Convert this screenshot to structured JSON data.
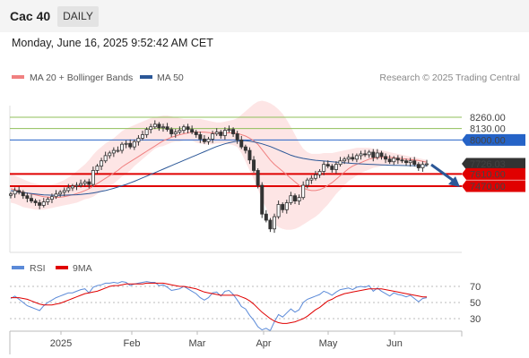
{
  "header": {
    "title": "Cac 40",
    "timeframe": "DAILY"
  },
  "datetime": "Monday, June 16, 2025 9:52:42 AM CET",
  "legend": {
    "ma20_label": "MA 20 + Bollinger Bands",
    "ma50_label": "MA 50",
    "copyright": "Research © 2025 Trading Central",
    "rsi_label": "RSI",
    "rsi_ma_label": "9MA"
  },
  "colors": {
    "ma20": "#f08080",
    "ma50": "#2b5797",
    "bollinger_fill": "#fde0e0",
    "support": "#e00000",
    "resistance_green": "#8fbf5a",
    "resistance_blue": "#2563c7",
    "price_tag": "#333333",
    "rsi": "#5b8ad8",
    "rsi_ma": "#e00000",
    "arrow": "#2b5797"
  },
  "chart_data": [
    {
      "type": "candlestick",
      "x_ticks": [
        "2025",
        "Feb",
        "Mar",
        "Apr",
        "May",
        "Jun"
      ],
      "y_range": [
        7000,
        8500
      ],
      "levels": [
        {
          "label": "8260.00",
          "value": 8260,
          "kind": "resistance",
          "color": "#8fbf5a"
        },
        {
          "label": "8130.00",
          "value": 8130,
          "kind": "resistance",
          "color": "#8fbf5a"
        },
        {
          "label": "8000.00",
          "value": 8000,
          "kind": "resistance",
          "color": "#2563c7"
        },
        {
          "label": "7726.03",
          "value": 7726.03,
          "kind": "last-price",
          "color": "#333333"
        },
        {
          "label": "7610.00",
          "value": 7610,
          "kind": "support",
          "color": "#e00000"
        },
        {
          "label": "7470.00",
          "value": 7470,
          "kind": "support",
          "color": "#e00000"
        }
      ],
      "close": [
        7380,
        7420,
        7400,
        7360,
        7330,
        7300,
        7280,
        7250,
        7290,
        7320,
        7350,
        7380,
        7400,
        7420,
        7450,
        7470,
        7480,
        7500,
        7520,
        7490,
        7650,
        7700,
        7760,
        7820,
        7850,
        7880,
        7880,
        7950,
        7960,
        7920,
        7980,
        8020,
        8060,
        8120,
        8150,
        8180,
        8140,
        8150,
        8120,
        8070,
        8090,
        8110,
        8150,
        8120,
        8090,
        8060,
        8010,
        7980,
        8010,
        8070,
        8090,
        8050,
        8110,
        8120,
        8070,
        8000,
        7920,
        7880,
        7770,
        7650,
        7480,
        7150,
        7080,
        6980,
        7120,
        7260,
        7200,
        7280,
        7360,
        7300,
        7340,
        7480,
        7540,
        7560,
        7600,
        7640,
        7720,
        7700,
        7660,
        7720,
        7760,
        7780,
        7800,
        7780,
        7820,
        7840,
        7830,
        7860,
        7800,
        7850,
        7810,
        7780,
        7750,
        7790,
        7770,
        7760,
        7740,
        7760,
        7720,
        7680,
        7720,
        7726
      ],
      "ma20": [
        7440,
        7430,
        7410,
        7400,
        7390,
        7380,
        7370,
        7360,
        7350,
        7345,
        7340,
        7340,
        7345,
        7350,
        7360,
        7370,
        7385,
        7400,
        7420,
        7440,
        7470,
        7500,
        7530,
        7560,
        7590,
        7620,
        7650,
        7690,
        7720,
        7750,
        7780,
        7810,
        7840,
        7870,
        7900,
        7930,
        7960,
        7990,
        8010,
        8030,
        8045,
        8060,
        8070,
        8080,
        8090,
        8090,
        8090,
        8090,
        8085,
        8080,
        8075,
        8075,
        8080,
        8080,
        8080,
        8075,
        8060,
        8045,
        8020,
        7990,
        7950,
        7890,
        7830,
        7770,
        7720,
        7680,
        7640,
        7600,
        7560,
        7520,
        7480,
        7450,
        7430,
        7420,
        7420,
        7430,
        7450,
        7480,
        7510,
        7550,
        7590,
        7630,
        7670,
        7700,
        7720,
        7740,
        7760,
        7780,
        7790,
        7795,
        7800,
        7800,
        7800,
        7795,
        7790,
        7785,
        7780,
        7775,
        7770,
        7765,
        7755,
        7745
      ],
      "bollinger_upper": [
        7600,
        7590,
        7570,
        7550,
        7530,
        7510,
        7500,
        7490,
        7480,
        7480,
        7490,
        7500,
        7520,
        7540,
        7570,
        7600,
        7640,
        7680,
        7720,
        7770,
        7830,
        7880,
        7920,
        7960,
        7990,
        8020,
        8060,
        8100,
        8130,
        8150,
        8170,
        8190,
        8210,
        8230,
        8250,
        8260,
        8270,
        8280,
        8280,
        8270,
        8260,
        8250,
        8240,
        8240,
        8240,
        8240,
        8240,
        8230,
        8220,
        8210,
        8200,
        8200,
        8210,
        8220,
        8230,
        8250,
        8290,
        8330,
        8370,
        8410,
        8440,
        8450,
        8440,
        8420,
        8390,
        8350,
        8300,
        8230,
        8150,
        8060,
        7970,
        7900,
        7860,
        7840,
        7840,
        7840,
        7850,
        7850,
        7850,
        7860,
        7870,
        7880,
        7890,
        7900,
        7910,
        7910,
        7910,
        7910,
        7900,
        7890,
        7880,
        7870,
        7860,
        7850,
        7840,
        7830,
        7820,
        7810,
        7800,
        7790,
        7780,
        7770
      ],
      "bollinger_lower": [
        7280,
        7270,
        7250,
        7230,
        7220,
        7210,
        7200,
        7200,
        7200,
        7210,
        7220,
        7230,
        7240,
        7250,
        7260,
        7270,
        7280,
        7300,
        7320,
        7330,
        7350,
        7380,
        7410,
        7440,
        7470,
        7500,
        7540,
        7580,
        7610,
        7650,
        7700,
        7740,
        7780,
        7820,
        7860,
        7900,
        7920,
        7930,
        7950,
        7970,
        7980,
        7980,
        7990,
        7990,
        7990,
        7970,
        7960,
        7950,
        7950,
        7950,
        7960,
        7960,
        7960,
        7950,
        7940,
        7920,
        7850,
        7750,
        7650,
        7550,
        7440,
        7320,
        7220,
        7110,
        7040,
        7000,
        6980,
        6970,
        6970,
        6980,
        7000,
        7030,
        7060,
        7090,
        7120,
        7160,
        7210,
        7260,
        7320,
        7380,
        7430,
        7480,
        7530,
        7560,
        7590,
        7620,
        7640,
        7660,
        7680,
        7690,
        7700,
        7710,
        7720,
        7720,
        7720,
        7720,
        7720,
        7720,
        7720,
        7720,
        7720,
        7720
      ],
      "ma50": [
        7420,
        7410,
        7400,
        7395,
        7390,
        7385,
        7380,
        7375,
        7370,
        7368,
        7366,
        7365,
        7365,
        7366,
        7368,
        7370,
        7372,
        7375,
        7380,
        7385,
        7392,
        7400,
        7410,
        7420,
        7432,
        7445,
        7460,
        7475,
        7490,
        7508,
        7525,
        7545,
        7565,
        7585,
        7605,
        7625,
        7645,
        7665,
        7685,
        7705,
        7725,
        7745,
        7765,
        7785,
        7805,
        7825,
        7845,
        7865,
        7885,
        7905,
        7925,
        7940,
        7955,
        7968,
        7978,
        7985,
        7990,
        7990,
        7985,
        7978,
        7968,
        7955,
        7940,
        7925,
        7905,
        7885,
        7865,
        7845,
        7825,
        7810,
        7798,
        7788,
        7780,
        7773,
        7767,
        7762,
        7758,
        7754,
        7750,
        7746,
        7742,
        7738,
        7734,
        7731,
        7728,
        7725,
        7722,
        7720,
        7718,
        7716,
        7714,
        7712,
        7710,
        7709,
        7708,
        7707,
        7706,
        7705,
        7705,
        7704,
        7704,
        7704
      ]
    },
    {
      "type": "line",
      "name": "RSI",
      "y_ticks": [
        70,
        50,
        30
      ],
      "y_range": [
        20,
        80
      ],
      "rsi": [
        55,
        58,
        54,
        50,
        46,
        44,
        42,
        40,
        46,
        50,
        53,
        56,
        58,
        60,
        62,
        62,
        64,
        66,
        67,
        62,
        69,
        71,
        72,
        74,
        74,
        75,
        74,
        76,
        75,
        71,
        73,
        74,
        75,
        76,
        75,
        75,
        71,
        72,
        69,
        65,
        66,
        67,
        70,
        67,
        64,
        61,
        56,
        53,
        56,
        62,
        63,
        58,
        64,
        65,
        60,
        53,
        45,
        42,
        34,
        28,
        20,
        16,
        18,
        15,
        26,
        35,
        32,
        37,
        42,
        38,
        41,
        50,
        54,
        56,
        58,
        60,
        64,
        62,
        59,
        63,
        66,
        67,
        68,
        66,
        69,
        70,
        69,
        71,
        64,
        68,
        64,
        61,
        58,
        62,
        60,
        59,
        57,
        59,
        55,
        51,
        55,
        56
      ],
      "rsi_ma": [
        56,
        56,
        56,
        55,
        54,
        52,
        50,
        48,
        47,
        47,
        47,
        48,
        49,
        51,
        53,
        55,
        57,
        59,
        61,
        62,
        63,
        64,
        66,
        68,
        70,
        71,
        71,
        72,
        73,
        73,
        73,
        73,
        73,
        74,
        74,
        74,
        74,
        74,
        73,
        72,
        71,
        70,
        70,
        69,
        68,
        67,
        65,
        63,
        62,
        61,
        60,
        59,
        59,
        59,
        59,
        59,
        57,
        55,
        52,
        48,
        43,
        38,
        34,
        30,
        27,
        25,
        24,
        24,
        25,
        26,
        28,
        30,
        33,
        37,
        41,
        44,
        48,
        52,
        54,
        57,
        59,
        61,
        62,
        63,
        64,
        65,
        66,
        67,
        67,
        67,
        67,
        66,
        65,
        64,
        63,
        62,
        61,
        60,
        59,
        58,
        57,
        57
      ]
    }
  ]
}
